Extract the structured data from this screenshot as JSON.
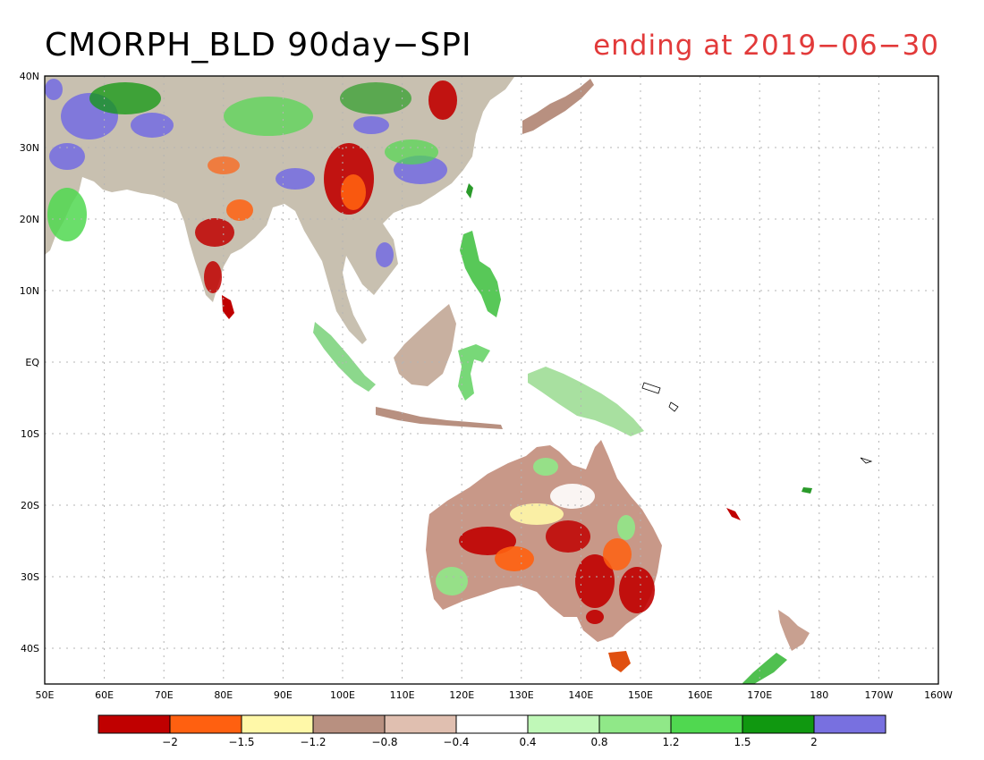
{
  "title": "CMORPH_BLD 90day−SPI",
  "subtitle": "ending at 2019−06−30",
  "colors": {
    "subtitle": "#e23a3a",
    "grid": "#b4b4b4",
    "coast": "#000000"
  },
  "axes": {
    "lat_labels": [
      "40N",
      "30N",
      "20N",
      "10N",
      "EQ",
      "10S",
      "20S",
      "30S",
      "40S"
    ],
    "lon_labels": [
      "50E",
      "60E",
      "70E",
      "80E",
      "90E",
      "100E",
      "110E",
      "120E",
      "130E",
      "140E",
      "150E",
      "160E",
      "170E",
      "180",
      "170W",
      "160W"
    ]
  },
  "legend": {
    "colors": [
      "#c00000",
      "#ff6010",
      "#fff8a8",
      "#b89080",
      "#e0bfb0",
      "#ffffff",
      "#c0f8b8",
      "#90e888",
      "#50d850",
      "#109810",
      "#7870e0"
    ],
    "labels": [
      "−2",
      "−1.5",
      "−1.2",
      "−0.8",
      "−0.4",
      "0.4",
      "0.8",
      "1.2",
      "1.5",
      "2"
    ]
  }
}
